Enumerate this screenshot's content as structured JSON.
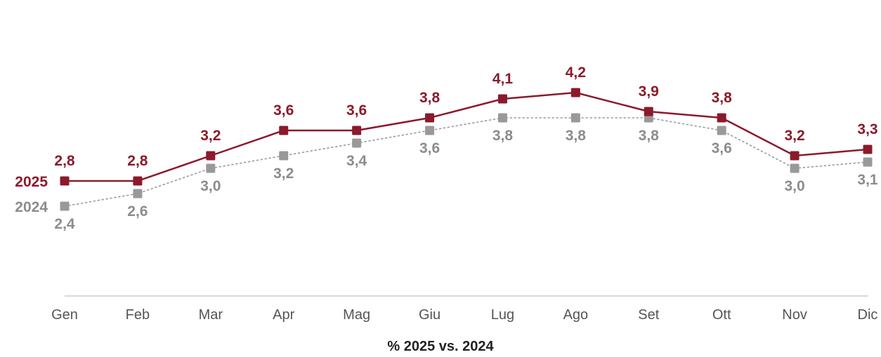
{
  "chart_data": {
    "type": "line",
    "categories": [
      "Gen",
      "Feb",
      "Mar",
      "Apr",
      "Mag",
      "Giu",
      "Lug",
      "Ago",
      "Set",
      "Ott",
      "Nov",
      "Dic"
    ],
    "series": [
      {
        "name": "2025",
        "values": [
          2.8,
          2.8,
          3.2,
          3.6,
          3.6,
          3.8,
          4.1,
          4.2,
          3.9,
          3.8,
          3.2,
          3.3
        ],
        "labels": [
          "2,8",
          "2,8",
          "3,2",
          "3,6",
          "3,6",
          "3,8",
          "4,1",
          "4,2",
          "3,9",
          "3,8",
          "3,2",
          "3,3"
        ],
        "color": "#8B1A2B",
        "line_style": "solid"
      },
      {
        "name": "2024",
        "values": [
          2.4,
          2.6,
          3.0,
          3.2,
          3.4,
          3.6,
          3.8,
          3.8,
          3.8,
          3.6,
          3.0,
          3.1
        ],
        "labels": [
          "2,4",
          "2,6",
          "3,0",
          "3,2",
          "3,4",
          "3,6",
          "3,8",
          "3,8",
          "3,8",
          "3,6",
          "3,0",
          "3,1"
        ],
        "color": "#999999",
        "line_style": "dotted"
      }
    ],
    "subtitle": "% 2025 vs. 2024",
    "legend": "inline-left",
    "grid": false
  }
}
